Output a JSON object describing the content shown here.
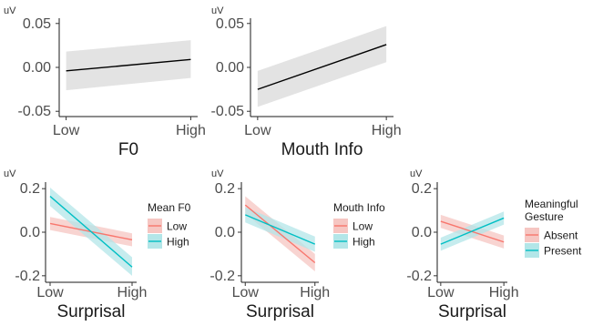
{
  "chart_data": [
    {
      "type": "line",
      "ylabel": "uV",
      "xlabel": "F0",
      "x": [
        "Low",
        "High"
      ],
      "ylim": [
        -0.056,
        0.056
      ],
      "yticks": [
        "0.05",
        "0.00",
        "-0.05"
      ],
      "ytick_values": [
        0.05,
        0.0,
        -0.05
      ],
      "series": [
        {
          "color": "#000000",
          "band": "#d9d9d9",
          "values": [
            -0.004,
            0.009
          ],
          "lower": [
            -0.026,
            -0.012
          ],
          "upper": [
            0.018,
            0.031
          ]
        }
      ]
    },
    {
      "type": "line",
      "ylabel": "uV",
      "xlabel": "Mouth Info",
      "x": [
        "Low",
        "High"
      ],
      "ylim": [
        -0.056,
        0.056
      ],
      "yticks": [
        "0.05",
        "0.00",
        "-0.05"
      ],
      "ytick_values": [
        0.05,
        0.0,
        -0.05
      ],
      "series": [
        {
          "color": "#000000",
          "band": "#d9d9d9",
          "values": [
            -0.025,
            0.026
          ],
          "lower": [
            -0.045,
            0.006
          ],
          "upper": [
            -0.004,
            0.047
          ]
        }
      ]
    },
    {
      "type": "line",
      "ylabel": "uV",
      "xlabel": "Surprisal",
      "x": [
        "Low",
        "High"
      ],
      "ylim": [
        -0.23,
        0.23
      ],
      "yticks": [
        "0.2",
        "0.0",
        "-0.2"
      ],
      "ytick_values": [
        0.2,
        0.0,
        -0.2
      ],
      "legend_title": [
        "Mean F0"
      ],
      "series": [
        {
          "name": "Low",
          "color": "#F8766D",
          "band": "#f6c6c2",
          "values": [
            0.04,
            -0.035
          ],
          "lower": [
            0.01,
            -0.065
          ],
          "upper": [
            0.07,
            -0.005
          ]
        },
        {
          "name": "High",
          "color": "#00BFC4",
          "band": "#b3e6e8",
          "values": [
            0.165,
            -0.16
          ],
          "lower": [
            0.12,
            -0.2
          ],
          "upper": [
            0.205,
            -0.115
          ]
        }
      ]
    },
    {
      "type": "line",
      "ylabel": "uV",
      "xlabel": "Surprisal",
      "x": [
        "Low",
        "High"
      ],
      "ylim": [
        -0.23,
        0.23
      ],
      "yticks": [
        "0.2",
        "0.0",
        "-0.2"
      ],
      "ytick_values": [
        0.2,
        0.0,
        -0.2
      ],
      "legend_title": [
        "Mouth Info"
      ],
      "series": [
        {
          "name": "Low",
          "color": "#F8766D",
          "band": "#f6c6c2",
          "values": [
            0.125,
            -0.14
          ],
          "lower": [
            0.085,
            -0.18
          ],
          "upper": [
            0.165,
            -0.1
          ]
        },
        {
          "name": "High",
          "color": "#00BFC4",
          "band": "#b3e6e8",
          "values": [
            0.08,
            -0.055
          ],
          "lower": [
            0.045,
            -0.09
          ],
          "upper": [
            0.115,
            -0.02
          ]
        }
      ]
    },
    {
      "type": "line",
      "ylabel": "uV",
      "xlabel": "Surprisal",
      "x": [
        "Low",
        "High"
      ],
      "ylim": [
        -0.23,
        0.23
      ],
      "yticks": [
        "0.2",
        "0.0",
        "-0.2"
      ],
      "ytick_values": [
        0.2,
        0.0,
        -0.2
      ],
      "legend_title": [
        "Meaningful",
        "Gesture"
      ],
      "series": [
        {
          "name": "Absent",
          "color": "#F8766D",
          "band": "#f6c6c2",
          "values": [
            0.05,
            -0.045
          ],
          "lower": [
            0.02,
            -0.075
          ],
          "upper": [
            0.08,
            -0.015
          ]
        },
        {
          "name": "Present",
          "color": "#00BFC4",
          "band": "#b3e6e8",
          "values": [
            -0.055,
            0.065
          ],
          "lower": [
            -0.085,
            0.035
          ],
          "upper": [
            -0.025,
            0.095
          ]
        }
      ]
    }
  ]
}
